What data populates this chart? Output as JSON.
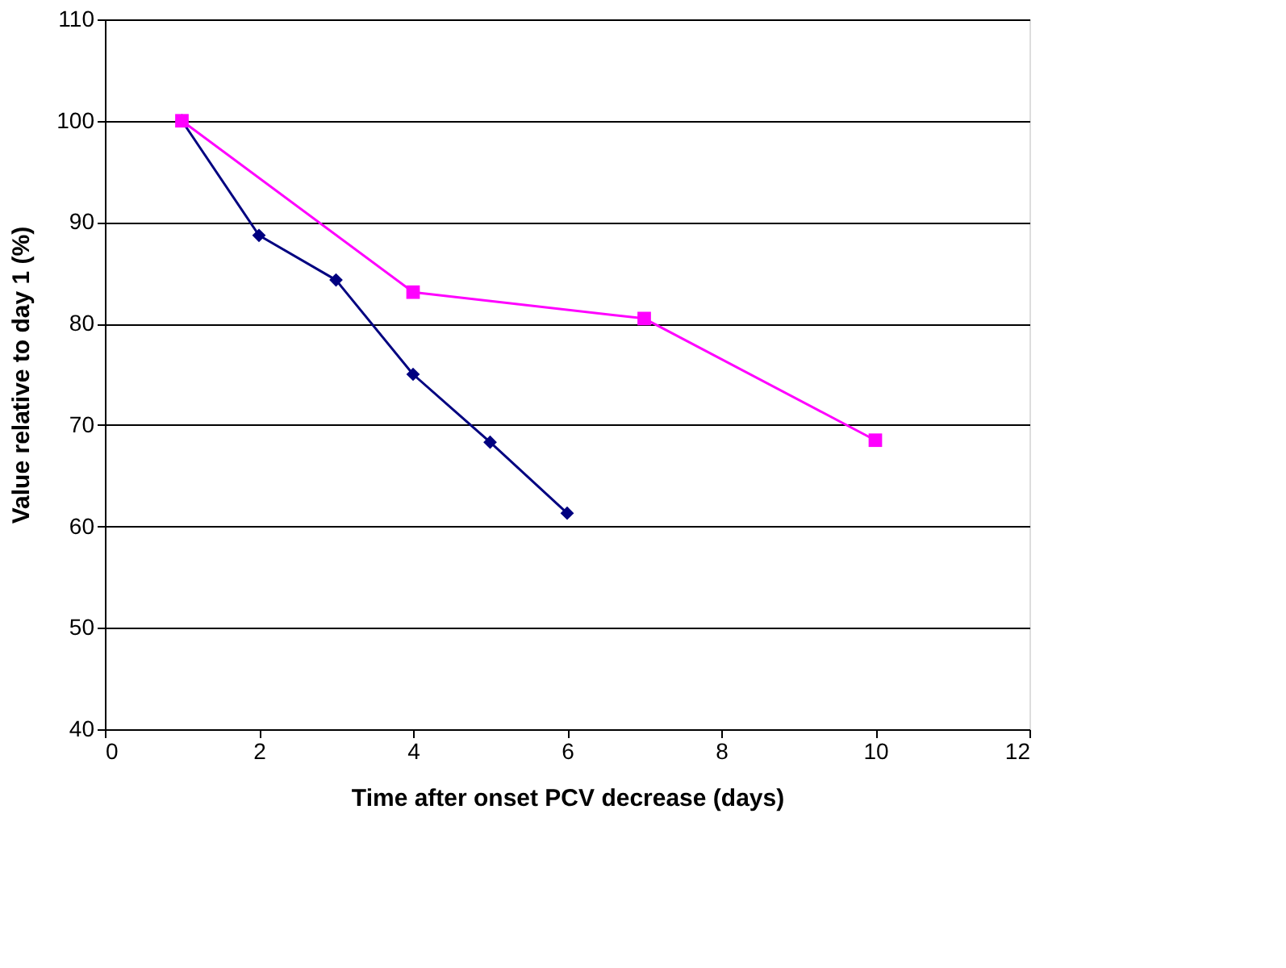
{
  "chart_data": {
    "type": "line",
    "xlabel": "Time after onset PCV decrease (days)",
    "ylabel": "Value relative to day 1 (%)",
    "xlim": [
      0,
      12
    ],
    "xticks": [
      0,
      2,
      4,
      6,
      8,
      10,
      12
    ],
    "ylim": [
      40,
      110
    ],
    "yticks": [
      40,
      50,
      60,
      70,
      80,
      90,
      100,
      110
    ],
    "grid": "y",
    "series": [
      {
        "color": "#000080",
        "marker": "diamond",
        "x": [
          1,
          2,
          3,
          4,
          5,
          6
        ],
        "values": [
          100,
          88.7,
          84.3,
          75,
          68.3,
          61.3
        ]
      },
      {
        "color": "#ff00ff",
        "marker": "square",
        "x": [
          1,
          4,
          7,
          10
        ],
        "values": [
          100,
          83.1,
          80.5,
          68.5
        ]
      }
    ]
  }
}
